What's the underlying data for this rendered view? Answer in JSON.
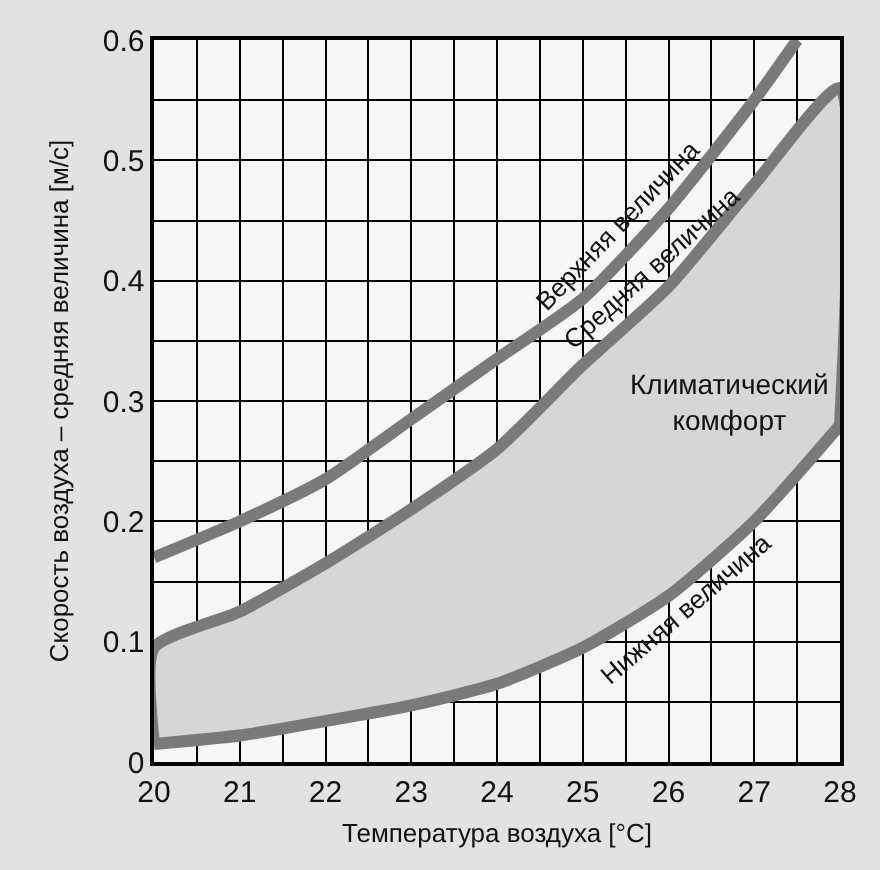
{
  "chart_data": {
    "type": "line",
    "xlabel": "Температура воздуха [°C]",
    "ylabel": "Скорость воздуха – средняя величина [м/с]",
    "xlim": [
      20,
      28
    ],
    "xticks": [
      20,
      21,
      22,
      23,
      24,
      25,
      26,
      27,
      28
    ],
    "ylim": [
      0,
      0.6
    ],
    "yticks": [
      0,
      0.1,
      0.2,
      0.3,
      0.4,
      0.5,
      0.6
    ],
    "grid": true,
    "legend": false,
    "marker": "none",
    "line_style": "solid",
    "series": [
      {
        "name": "Верхняя величина",
        "color": "#7a7a7a",
        "x": [
          20,
          21,
          22,
          23,
          24,
          25,
          26,
          27,
          27.5
        ],
        "values": [
          0.17,
          0.2,
          0.235,
          0.285,
          0.335,
          0.385,
          0.46,
          0.55,
          0.6
        ]
      },
      {
        "name": "Средняя величина",
        "color": "#7a7a7a",
        "type": "area",
        "x": [
          20,
          20,
          21,
          22,
          23,
          24,
          25,
          26,
          27,
          28,
          28
        ],
        "values": [
          0.015,
          0.095,
          0.125,
          0.165,
          0.21,
          0.26,
          0.33,
          0.395,
          0.48,
          0.56,
          0.28
        ]
      },
      {
        "name": "Нижняя величина",
        "color": "#7a7a7a",
        "x": [
          20,
          21,
          22,
          23,
          24,
          25,
          26,
          27,
          28
        ],
        "values": [
          0.015,
          0.022,
          0.034,
          0.047,
          0.065,
          0.095,
          0.138,
          0.2,
          0.28
        ]
      }
    ],
    "annotations": [
      {
        "text": "Климатический\nкомфорт",
        "x": 27.9,
        "y": 0.3
      }
    ]
  }
}
